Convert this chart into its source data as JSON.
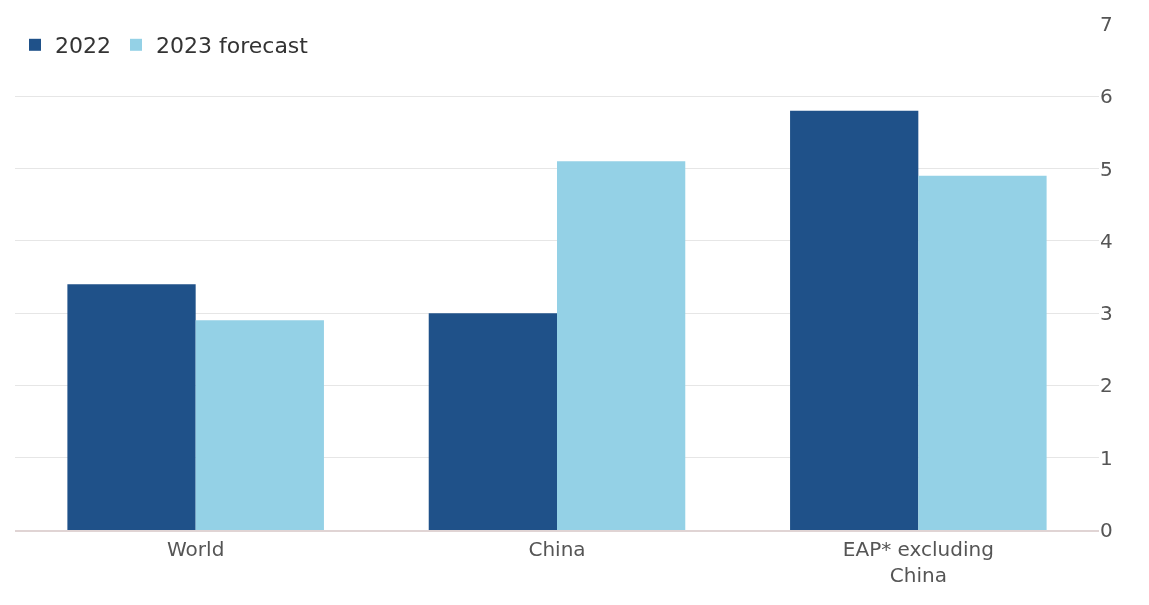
{
  "chart_data": {
    "type": "bar",
    "categories": [
      "World",
      "China",
      "EAP* excluding\nChina"
    ],
    "series": [
      {
        "name": "2022",
        "color": "#1f5189",
        "values": [
          3.4,
          3.0,
          5.8
        ]
      },
      {
        "name": "2023 forecast",
        "color": "#94d1e6",
        "values": [
          2.9,
          5.1,
          4.9
        ]
      }
    ],
    "ylim": [
      0,
      7
    ],
    "yticks": [
      0,
      1,
      2,
      3,
      4,
      5,
      6,
      7
    ],
    "grid": "y",
    "legend": "top left"
  }
}
